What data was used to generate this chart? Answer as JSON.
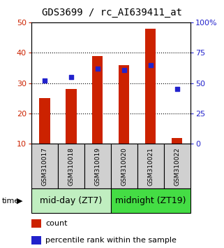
{
  "title": "GDS3699 / rc_AI639411_at",
  "samples": [
    "GSM310017",
    "GSM310018",
    "GSM310019",
    "GSM310020",
    "GSM310021",
    "GSM310022"
  ],
  "counts": [
    25,
    28,
    39,
    36,
    48,
    12
  ],
  "percentiles": [
    52,
    55,
    62,
    61,
    65,
    45
  ],
  "ylim_left": [
    10,
    50
  ],
  "ylim_right": [
    0,
    100
  ],
  "yticks_left": [
    10,
    20,
    30,
    40,
    50
  ],
  "yticks_right": [
    0,
    25,
    50,
    75,
    100
  ],
  "bar_color": "#cc2200",
  "dot_color": "#2222cc",
  "bar_width": 0.4,
  "groups": [
    {
      "label": "mid-day (ZT7)",
      "samples": [
        0,
        1,
        2
      ],
      "color": "#c0eec0"
    },
    {
      "label": "midnight (ZT19)",
      "samples": [
        3,
        4,
        5
      ],
      "color": "#44dd44"
    }
  ],
  "legend_count_label": "count",
  "legend_pct_label": "percentile rank within the sample",
  "time_label": "time",
  "title_fontsize": 10,
  "tick_fontsize": 8,
  "sample_fontsize": 6.5,
  "group_fontsize": 9,
  "legend_fontsize": 8,
  "grid_lines": [
    20,
    30,
    40
  ],
  "bg_color": "#ffffff",
  "gray_box_color": "#d0d0d0"
}
